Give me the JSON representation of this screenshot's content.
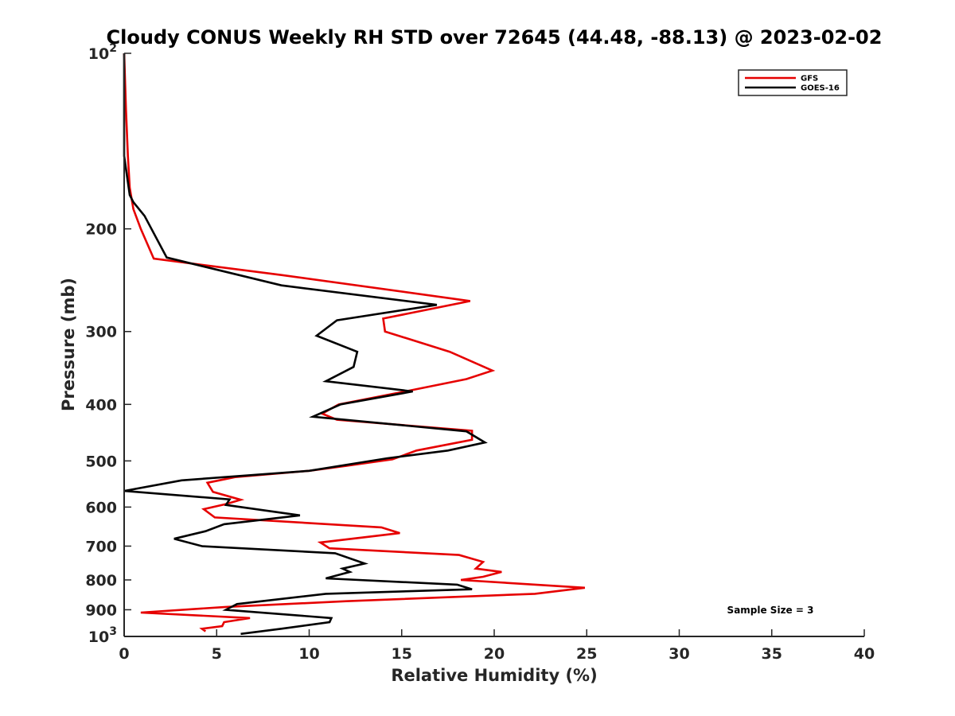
{
  "chart_data": {
    "type": "line",
    "title": "Cloudy CONUS Weekly RH STD over 72645 (44.48, -88.13) @ 2023-02-02",
    "xlabel": "Relative Humidity (%)",
    "ylabel": "Pressure (mb)",
    "xlim": [
      0,
      40
    ],
    "ylim": [
      1000,
      100
    ],
    "y_scale": "log",
    "y_reversed": true,
    "grid": false,
    "legend_position": "top-right",
    "x_ticks": [
      0,
      5,
      10,
      15,
      20,
      25,
      30,
      35,
      40
    ],
    "x_tick_labels": [
      "0",
      "5",
      "10",
      "15",
      "20",
      "25",
      "30",
      "35",
      "40"
    ],
    "y_ticks": [
      100,
      200,
      300,
      400,
      500,
      600,
      700,
      800,
      900,
      1000
    ],
    "y_tick_labels": [
      {
        "base": "10",
        "exp": "2"
      },
      {
        "base": "200",
        "exp": ""
      },
      {
        "base": "300",
        "exp": ""
      },
      {
        "base": "400",
        "exp": ""
      },
      {
        "base": "500",
        "exp": ""
      },
      {
        "base": "600",
        "exp": ""
      },
      {
        "base": "700",
        "exp": ""
      },
      {
        "base": "800",
        "exp": ""
      },
      {
        "base": "900",
        "exp": ""
      },
      {
        "base": "10",
        "exp": "3"
      }
    ],
    "annotation": "Sample Size = 3",
    "series": [
      {
        "name": "GFS",
        "color": "#e60000",
        "points": [
          [
            0.0,
            100
          ],
          [
            0.1,
            125
          ],
          [
            0.2,
            150
          ],
          [
            0.3,
            170
          ],
          [
            0.5,
            185
          ],
          [
            0.9,
            200
          ],
          [
            1.6,
            225
          ],
          [
            8.5,
            240
          ],
          [
            18.7,
            266
          ],
          [
            14.0,
            285
          ],
          [
            14.1,
            300
          ],
          [
            17.6,
            325
          ],
          [
            19.9,
            350
          ],
          [
            18.5,
            362
          ],
          [
            15.2,
            380
          ],
          [
            11.6,
            400
          ],
          [
            10.7,
            415
          ],
          [
            11.5,
            425
          ],
          [
            18.8,
            444
          ],
          [
            18.8,
            460
          ],
          [
            15.8,
            480
          ],
          [
            14.5,
            497
          ],
          [
            12.0,
            510
          ],
          [
            10.0,
            520
          ],
          [
            6.0,
            533
          ],
          [
            4.5,
            545
          ],
          [
            4.8,
            565
          ],
          [
            6.3,
            583
          ],
          [
            5.5,
            593
          ],
          [
            4.3,
            605
          ],
          [
            4.9,
            625
          ],
          [
            13.9,
            650
          ],
          [
            14.9,
            665
          ],
          [
            10.6,
            690
          ],
          [
            11.1,
            706
          ],
          [
            18.1,
            725
          ],
          [
            19.4,
            745
          ],
          [
            19.0,
            765
          ],
          [
            20.4,
            775
          ],
          [
            19.4,
            790
          ],
          [
            18.2,
            800
          ],
          [
            24.9,
            825
          ],
          [
            22.2,
            845
          ],
          [
            12.0,
            870
          ],
          [
            5.5,
            890
          ],
          [
            0.9,
            910
          ],
          [
            6.8,
            930
          ],
          [
            5.4,
            945
          ],
          [
            5.3,
            960
          ],
          [
            4.2,
            970
          ],
          [
            4.4,
            980
          ]
        ]
      },
      {
        "name": "GOES-16",
        "color": "#000000",
        "points": [
          [
            0.0,
            100
          ],
          [
            0.0,
            125
          ],
          [
            0.0,
            150
          ],
          [
            0.3,
            175
          ],
          [
            0.5,
            180
          ],
          [
            1.1,
            190
          ],
          [
            2.3,
            224
          ],
          [
            8.5,
            250
          ],
          [
            16.9,
            270
          ],
          [
            11.5,
            287
          ],
          [
            10.4,
            305
          ],
          [
            12.6,
            325
          ],
          [
            12.4,
            345
          ],
          [
            10.9,
            365
          ],
          [
            15.6,
            380
          ],
          [
            11.7,
            400
          ],
          [
            10.2,
            420
          ],
          [
            18.5,
            445
          ],
          [
            19.5,
            465
          ],
          [
            17.5,
            480
          ],
          [
            14.2,
            495
          ],
          [
            10.0,
            520
          ],
          [
            3.1,
            540
          ],
          [
            0.0,
            563
          ],
          [
            5.7,
            582
          ],
          [
            5.5,
            595
          ],
          [
            9.5,
            620
          ],
          [
            5.4,
            642
          ],
          [
            4.4,
            660
          ],
          [
            2.7,
            680
          ],
          [
            4.2,
            700
          ],
          [
            11.4,
            720
          ],
          [
            13.0,
            750
          ],
          [
            11.8,
            765
          ],
          [
            12.2,
            775
          ],
          [
            10.9,
            795
          ],
          [
            18.0,
            815
          ],
          [
            18.8,
            830
          ],
          [
            10.9,
            845
          ],
          [
            6.1,
            880
          ],
          [
            5.8,
            890
          ],
          [
            5.5,
            900
          ],
          [
            11.2,
            930
          ],
          [
            11.1,
            945
          ],
          [
            8.5,
            970
          ],
          [
            6.3,
            990
          ]
        ]
      }
    ]
  }
}
